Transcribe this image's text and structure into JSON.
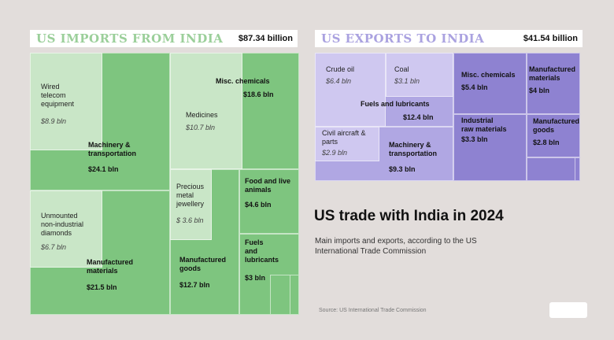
{
  "chart_data": [
    {
      "type": "treemap",
      "title": "US IMPORTS FROM INDIA",
      "total": "$87.34 billion",
      "groups": [
        {
          "name": "Machinery & transportation",
          "value_label": "$24.1 bln",
          "value": 24.1,
          "children": [
            {
              "name": "Wired telecom equipment",
              "value_label": "$8.9 bln",
              "value": 8.9
            }
          ]
        },
        {
          "name": "Manufactured materials",
          "value_label": "$21.5 bln",
          "value": 21.5,
          "children": [
            {
              "name": "Unmounted non-industrial diamonds",
              "value_label": "$6.7 bln",
              "value": 6.7
            }
          ]
        },
        {
          "name": "Misc. chemicals",
          "value_label": "$18.6 bln",
          "value": 18.6,
          "children": [
            {
              "name": "Medicines",
              "value_label": "$10.7 bln",
              "value": 10.7
            }
          ]
        },
        {
          "name": "Manufactured goods",
          "value_label": "$12.7 bln",
          "value": 12.7,
          "children": [
            {
              "name": "Precious metal jewellery",
              "value_label": "$ 3.6 bln",
              "value": 3.6
            }
          ]
        },
        {
          "name": "Food and live animals",
          "value_label": "$4.6 bln",
          "value": 4.6,
          "children": []
        },
        {
          "name": "Fuels and lubricants",
          "value_label": "$3 bln",
          "value": 3.0,
          "children": []
        }
      ]
    },
    {
      "type": "treemap",
      "title": "US EXPORTS TO INDIA",
      "total": "$41.54 billion",
      "groups": [
        {
          "name": "Fuels and lubricants",
          "value_label": "$12.4 bln",
          "value": 12.4,
          "children": [
            {
              "name": "Crude oil",
              "value_label": "$6.4 bln",
              "value": 6.4
            },
            {
              "name": "Coal",
              "value_label": "$3.1 bln",
              "value": 3.1
            }
          ]
        },
        {
          "name": "Machinery & transportation",
          "value_label": "$9.3 bln",
          "value": 9.3,
          "children": [
            {
              "name": "Civil aircraft & parts",
              "value_label": "$2.9 bln",
              "value": 2.9
            }
          ]
        },
        {
          "name": "Misc. chemicals",
          "value_label": "$5.4 bln",
          "value": 5.4,
          "children": []
        },
        {
          "name": "Manufactured materials",
          "value_label": "$4 bln",
          "value": 4.0,
          "children": []
        },
        {
          "name": "Industrial raw materials",
          "value_label": "$3.3 bln",
          "value": 3.3,
          "children": []
        },
        {
          "name": "Manufactured goods",
          "value_label": "$2.8 bln",
          "value": 2.8,
          "children": []
        }
      ]
    }
  ],
  "infographic": {
    "title": "US trade with India in 2024",
    "subtitle": "Main imports and exports, according to the US International Trade Commission",
    "source": "Source: US International Trade Commission"
  },
  "colors": {
    "imports_dark": "#7ec57f",
    "imports_mid": "#a4d6a3",
    "imports_light": "#c9e6c7",
    "exports_dark": "#8e82d1",
    "exports_mid": "#b0a7e3",
    "exports_light": "#cfc8f0"
  }
}
